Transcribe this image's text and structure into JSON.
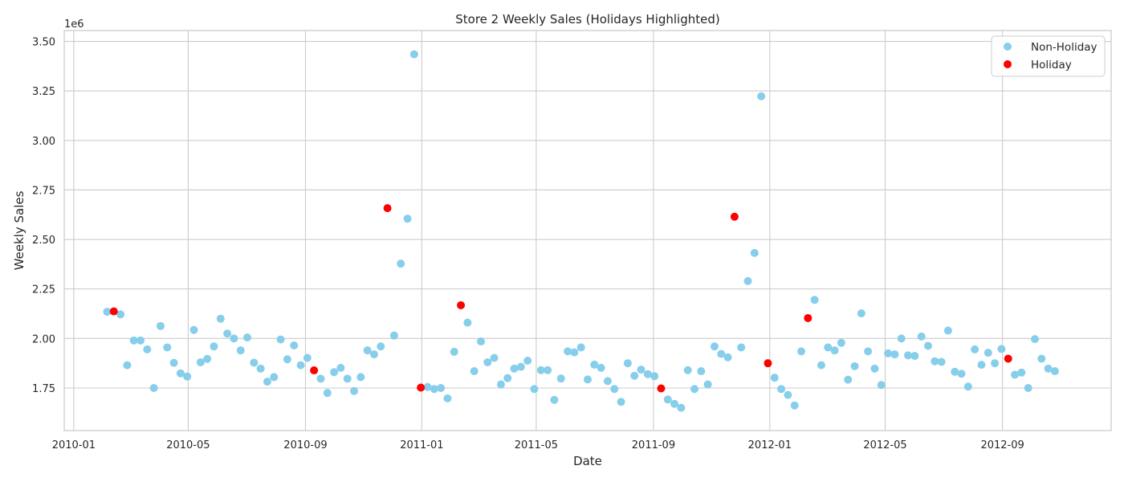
{
  "chart_data": {
    "type": "scatter",
    "title": "Store 2 Weekly Sales (Holidays Highlighted)",
    "xlabel": "Date",
    "ylabel": "Weekly Sales",
    "y_offset_text": "1e6",
    "x_axis_type": "date",
    "xlim": [
      "2009-12-22",
      "2012-12-24"
    ],
    "ylim": [
      1.535,
      3.555
    ],
    "x_ticks": [
      "2010-01-01",
      "2010-05-01",
      "2010-09-01",
      "2011-01-01",
      "2011-05-01",
      "2011-09-01",
      "2012-01-01",
      "2012-05-01",
      "2012-09-01"
    ],
    "x_tick_labels": [
      "2010-01",
      "2010-05",
      "2010-09",
      "2011-01",
      "2011-05",
      "2011-09",
      "2012-01",
      "2012-05",
      "2012-09"
    ],
    "y_ticks": [
      1.75,
      2.0,
      2.25,
      2.5,
      2.75,
      3.0,
      3.25,
      3.5
    ],
    "y_tick_labels": [
      "1.75",
      "2.00",
      "2.25",
      "2.50",
      "2.75",
      "3.00",
      "3.25",
      "3.50"
    ],
    "grid": true,
    "legend_position": "top-right",
    "series": [
      {
        "name": "Non-Holiday",
        "color": "#87ceeb",
        "x": [
          "2010-02-05",
          "2010-02-19",
          "2010-02-26",
          "2010-03-05",
          "2010-03-12",
          "2010-03-19",
          "2010-03-26",
          "2010-04-02",
          "2010-04-09",
          "2010-04-16",
          "2010-04-23",
          "2010-04-30",
          "2010-05-07",
          "2010-05-14",
          "2010-05-21",
          "2010-05-28",
          "2010-06-04",
          "2010-06-11",
          "2010-06-18",
          "2010-06-25",
          "2010-07-02",
          "2010-07-09",
          "2010-07-16",
          "2010-07-23",
          "2010-07-30",
          "2010-08-06",
          "2010-08-13",
          "2010-08-20",
          "2010-08-27",
          "2010-09-03",
          "2010-09-17",
          "2010-09-24",
          "2010-10-01",
          "2010-10-08",
          "2010-10-15",
          "2010-10-22",
          "2010-10-29",
          "2010-11-05",
          "2010-11-12",
          "2010-11-19",
          "2010-12-03",
          "2010-12-10",
          "2010-12-17",
          "2010-12-24",
          "2011-01-07",
          "2011-01-14",
          "2011-01-21",
          "2011-01-28",
          "2011-02-04",
          "2011-02-18",
          "2011-02-25",
          "2011-03-04",
          "2011-03-11",
          "2011-03-18",
          "2011-03-25",
          "2011-04-01",
          "2011-04-08",
          "2011-04-15",
          "2011-04-22",
          "2011-04-29",
          "2011-05-06",
          "2011-05-13",
          "2011-05-20",
          "2011-05-27",
          "2011-06-03",
          "2011-06-10",
          "2011-06-17",
          "2011-06-24",
          "2011-07-01",
          "2011-07-08",
          "2011-07-15",
          "2011-07-22",
          "2011-07-29",
          "2011-08-05",
          "2011-08-12",
          "2011-08-19",
          "2011-08-26",
          "2011-09-02",
          "2011-09-16",
          "2011-09-23",
          "2011-09-30",
          "2011-10-07",
          "2011-10-14",
          "2011-10-21",
          "2011-10-28",
          "2011-11-04",
          "2011-11-11",
          "2011-11-18",
          "2011-12-02",
          "2011-12-09",
          "2011-12-16",
          "2011-12-23",
          "2012-01-06",
          "2012-01-13",
          "2012-01-20",
          "2012-01-27",
          "2012-02-03",
          "2012-02-17",
          "2012-02-24",
          "2012-03-02",
          "2012-03-09",
          "2012-03-16",
          "2012-03-23",
          "2012-03-30",
          "2012-04-06",
          "2012-04-13",
          "2012-04-20",
          "2012-04-27",
          "2012-05-04",
          "2012-05-11",
          "2012-05-18",
          "2012-05-25",
          "2012-06-01",
          "2012-06-08",
          "2012-06-15",
          "2012-06-22",
          "2012-06-29",
          "2012-07-06",
          "2012-07-13",
          "2012-07-20",
          "2012-07-27",
          "2012-08-03",
          "2012-08-10",
          "2012-08-17",
          "2012-08-24",
          "2012-08-31",
          "2012-09-14",
          "2012-09-21",
          "2012-09-28",
          "2012-10-05",
          "2012-10-12",
          "2012-10-19",
          "2012-10-26"
        ],
        "y": [
          2.135,
          2.122,
          1.865,
          1.99,
          1.99,
          1.945,
          1.75,
          2.063,
          1.955,
          1.877,
          1.824,
          1.808,
          2.043,
          1.88,
          1.897,
          1.96,
          2.1,
          2.025,
          2.0,
          1.94,
          2.005,
          1.878,
          1.848,
          1.782,
          1.805,
          1.995,
          1.895,
          1.965,
          1.865,
          1.902,
          1.797,
          1.725,
          1.83,
          1.852,
          1.797,
          1.735,
          1.805,
          1.94,
          1.92,
          1.96,
          2.015,
          2.378,
          2.605,
          3.435,
          1.755,
          1.745,
          1.75,
          1.698,
          1.933,
          2.08,
          1.835,
          1.985,
          1.88,
          1.902,
          1.768,
          1.8,
          1.848,
          1.857,
          1.888,
          1.745,
          1.84,
          1.84,
          1.69,
          1.798,
          1.935,
          1.93,
          1.955,
          1.793,
          1.868,
          1.852,
          1.785,
          1.745,
          1.68,
          1.875,
          1.812,
          1.843,
          1.82,
          1.81,
          1.692,
          1.67,
          1.65,
          1.84,
          1.745,
          1.835,
          1.768,
          1.96,
          1.922,
          1.905,
          1.955,
          2.29,
          2.432,
          3.223,
          1.802,
          1.745,
          1.715,
          1.662,
          1.935,
          2.195,
          1.865,
          1.955,
          1.94,
          1.978,
          1.792,
          1.86,
          2.127,
          1.935,
          1.848,
          1.765,
          1.925,
          1.92,
          2.0,
          1.915,
          1.912,
          2.01,
          1.963,
          1.885,
          1.882,
          2.04,
          1.832,
          1.822,
          1.757,
          1.945,
          1.867,
          1.928,
          1.875,
          1.947,
          1.817,
          1.828,
          1.75,
          1.997,
          1.898,
          1.848,
          1.835
        ]
      },
      {
        "name": "Holiday",
        "color": "#ff0000",
        "x": [
          "2010-02-12",
          "2010-09-10",
          "2010-11-26",
          "2010-12-31",
          "2011-02-11",
          "2011-09-09",
          "2011-11-25",
          "2011-12-30",
          "2012-02-10",
          "2012-09-07"
        ],
        "y": [
          2.137,
          1.839,
          2.658,
          1.752,
          2.168,
          1.748,
          2.615,
          1.875,
          2.103,
          1.898
        ]
      }
    ]
  }
}
